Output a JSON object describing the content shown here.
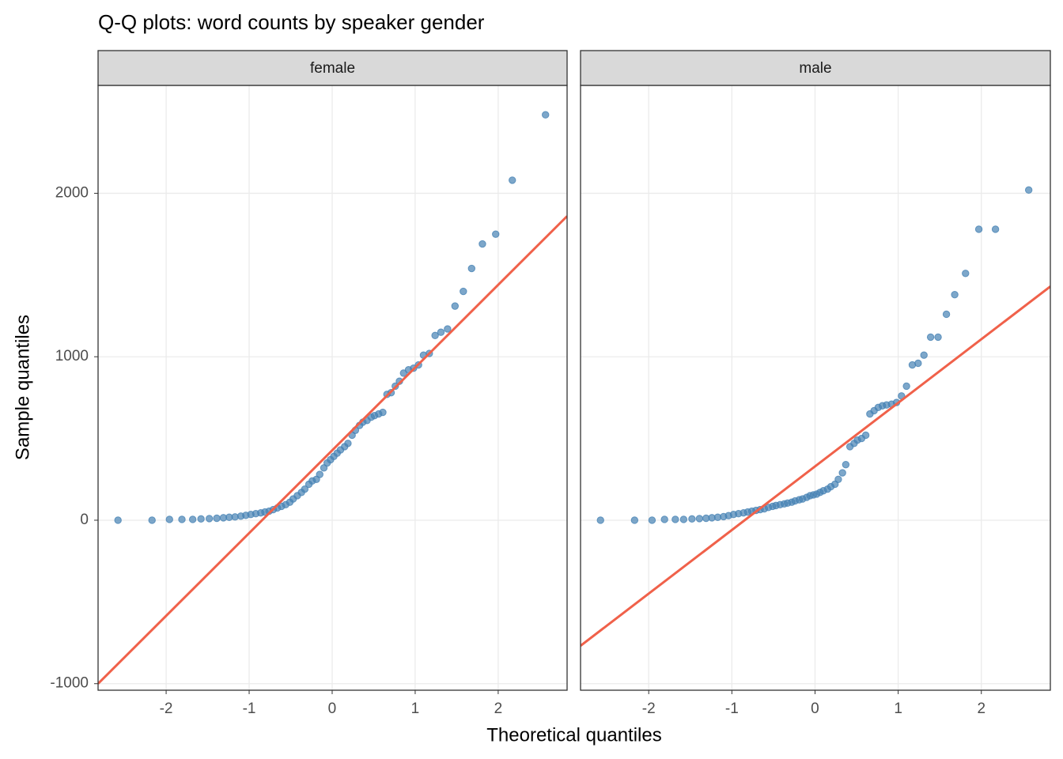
{
  "chart_data": {
    "type": "scatter",
    "title": "Q-Q plots: word counts by speaker gender",
    "x_label": "Theoretical quantiles",
    "y_label": "Sample quantiles",
    "xlim": [
      -2.82,
      2.83
    ],
    "ylim": [
      -1040,
      2660
    ],
    "xticks": [
      -2,
      -1,
      0,
      1,
      2
    ],
    "yticks": [
      -1000,
      0,
      1000,
      2000
    ],
    "grid": true,
    "color": "#4682b4",
    "line_color": "#f0614a",
    "panels": [
      {
        "label": "female",
        "x": [
          -2.58,
          -2.17,
          -1.96,
          -1.81,
          -1.68,
          -1.58,
          -1.48,
          -1.39,
          -1.31,
          -1.24,
          -1.17,
          -1.1,
          -1.04,
          -0.98,
          -0.92,
          -0.86,
          -0.81,
          -0.76,
          -0.71,
          -0.66,
          -0.61,
          -0.56,
          -0.51,
          -0.47,
          -0.42,
          -0.37,
          -0.33,
          -0.28,
          -0.24,
          -0.19,
          -0.15,
          -0.1,
          -0.06,
          -0.02,
          0.02,
          0.06,
          0.1,
          0.15,
          0.19,
          0.24,
          0.28,
          0.33,
          0.37,
          0.42,
          0.47,
          0.51,
          0.56,
          0.61,
          0.66,
          0.71,
          0.76,
          0.81,
          0.86,
          0.92,
          0.98,
          1.04,
          1.1,
          1.17,
          1.24,
          1.31,
          1.39,
          1.48,
          1.58,
          1.68,
          1.81,
          1.97,
          2.17,
          2.57
        ],
        "values": [
          0,
          0,
          5,
          5,
          5,
          8,
          10,
          12,
          15,
          18,
          20,
          25,
          30,
          35,
          40,
          45,
          50,
          55,
          65,
          75,
          85,
          95,
          110,
          130,
          150,
          170,
          190,
          220,
          240,
          250,
          280,
          320,
          350,
          370,
          390,
          410,
          430,
          450,
          470,
          520,
          550,
          580,
          600,
          610,
          630,
          640,
          650,
          660,
          770,
          780,
          820,
          850,
          900,
          920,
          930,
          950,
          1010,
          1020,
          1130,
          1150,
          1170,
          1310,
          1400,
          1540,
          1690,
          1750,
          2080,
          2480
        ],
        "line_x": [
          -2.82,
          2.83
        ],
        "line_y": [
          -1000,
          1860
        ]
      },
      {
        "label": "male",
        "x": [
          -2.58,
          -2.17,
          -1.96,
          -1.81,
          -1.68,
          -1.58,
          -1.48,
          -1.39,
          -1.31,
          -1.24,
          -1.17,
          -1.1,
          -1.04,
          -0.98,
          -0.92,
          -0.86,
          -0.81,
          -0.76,
          -0.71,
          -0.66,
          -0.61,
          -0.56,
          -0.51,
          -0.47,
          -0.42,
          -0.37,
          -0.33,
          -0.28,
          -0.24,
          -0.19,
          -0.15,
          -0.1,
          -0.06,
          -0.02,
          0.02,
          0.06,
          0.1,
          0.15,
          0.19,
          0.24,
          0.28,
          0.33,
          0.37,
          0.42,
          0.47,
          0.51,
          0.56,
          0.61,
          0.66,
          0.71,
          0.76,
          0.81,
          0.86,
          0.92,
          0.98,
          1.04,
          1.1,
          1.17,
          1.24,
          1.31,
          1.39,
          1.48,
          1.58,
          1.68,
          1.81,
          1.97,
          2.17,
          2.57
        ],
        "values": [
          0,
          0,
          0,
          5,
          5,
          5,
          8,
          10,
          12,
          15,
          18,
          22,
          28,
          35,
          40,
          45,
          50,
          55,
          60,
          65,
          70,
          78,
          85,
          90,
          95,
          100,
          105,
          110,
          118,
          125,
          130,
          140,
          150,
          155,
          160,
          170,
          180,
          190,
          205,
          220,
          250,
          290,
          340,
          450,
          470,
          490,
          500,
          520,
          650,
          670,
          690,
          700,
          705,
          710,
          720,
          760,
          820,
          950,
          960,
          1010,
          1120,
          1120,
          1260,
          1380,
          1510,
          1780,
          1780,
          2020
        ],
        "line_x": [
          -2.82,
          2.83
        ],
        "line_y": [
          -768,
          1430
        ]
      }
    ]
  }
}
